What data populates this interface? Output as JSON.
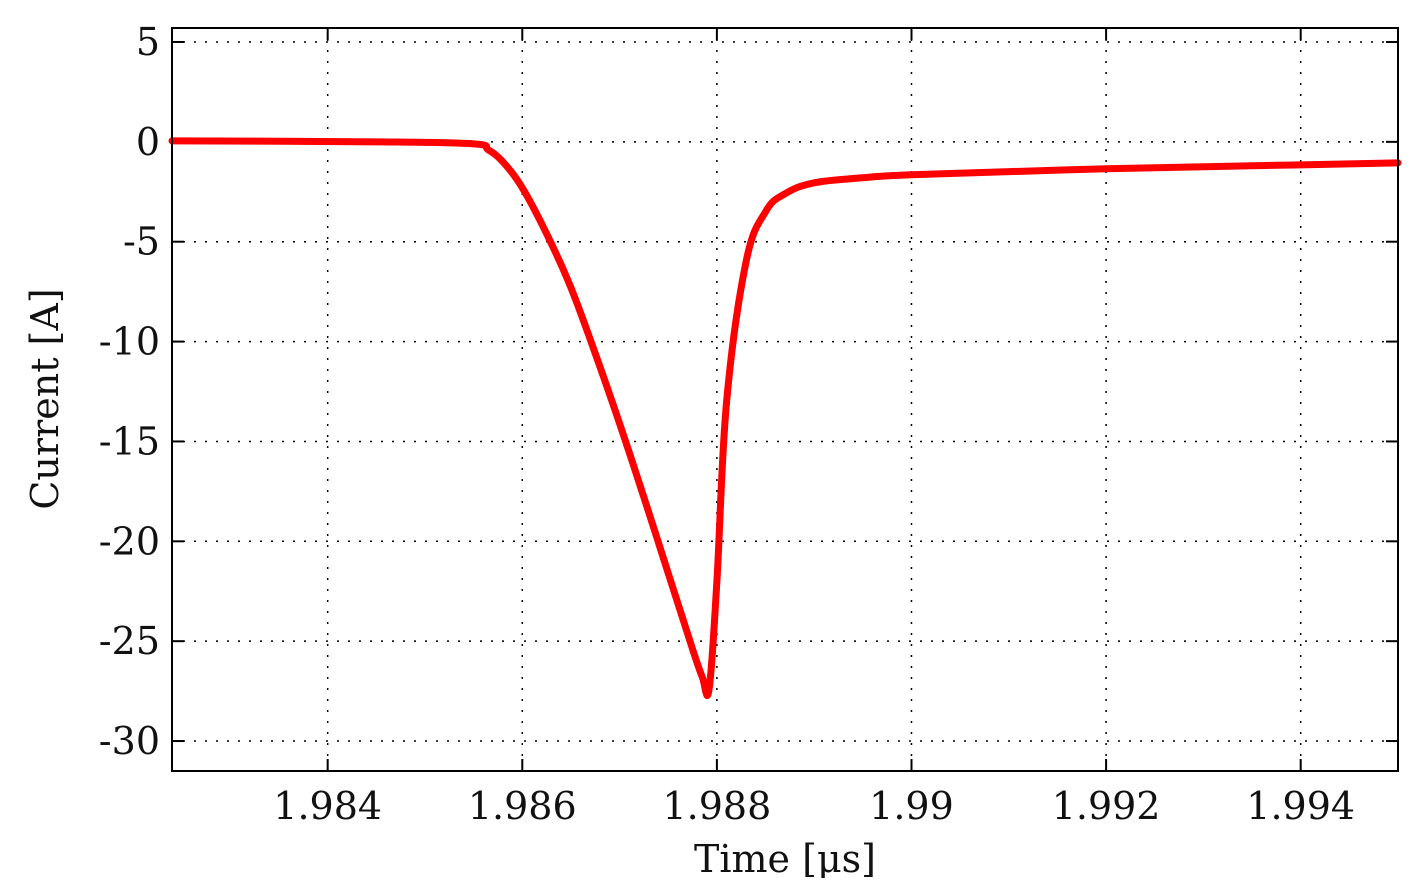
{
  "chart_data": {
    "type": "line",
    "title": "",
    "xlabel": "Time [μs]",
    "ylabel": "Current [A]",
    "xlim": [
      1.9824,
      1.995
    ],
    "ylim": [
      -31.5,
      5.7
    ],
    "xticks": [
      1.984,
      1.986,
      1.988,
      1.99,
      1.992,
      1.994
    ],
    "xtick_labels": [
      "1.984",
      "1.986",
      "1.988",
      "1.99",
      "1.992",
      "1.994"
    ],
    "yticks": [
      5,
      0,
      -5,
      -10,
      -15,
      -20,
      -25,
      -30
    ],
    "ytick_labels": [
      "5",
      "0",
      "-5",
      "-10",
      "-15",
      "-20",
      "-25",
      "-30"
    ],
    "grid": true,
    "legend": "none",
    "series": [
      {
        "color": "#ff0000",
        "x": [
          1.9824,
          1.9845,
          1.9855,
          1.98565,
          1.9858,
          1.986,
          1.98625,
          1.9865,
          1.98675,
          1.987,
          1.98725,
          1.9875,
          1.98775,
          1.98785,
          1.98792,
          1.988,
          1.9881,
          1.9883,
          1.9885,
          1.9887,
          1.989,
          1.9895,
          1.99,
          1.992,
          1.994,
          1.995
        ],
        "y": [
          0.05,
          0.0,
          -0.1,
          -0.4,
          -1.0,
          -2.3,
          -4.6,
          -7.3,
          -10.6,
          -14.1,
          -17.8,
          -21.6,
          -25.4,
          -26.8,
          -27.4,
          -22.0,
          -13.0,
          -6.0,
          -3.5,
          -2.6,
          -2.05,
          -1.8,
          -1.65,
          -1.35,
          -1.15,
          -1.05
        ]
      }
    ]
  }
}
